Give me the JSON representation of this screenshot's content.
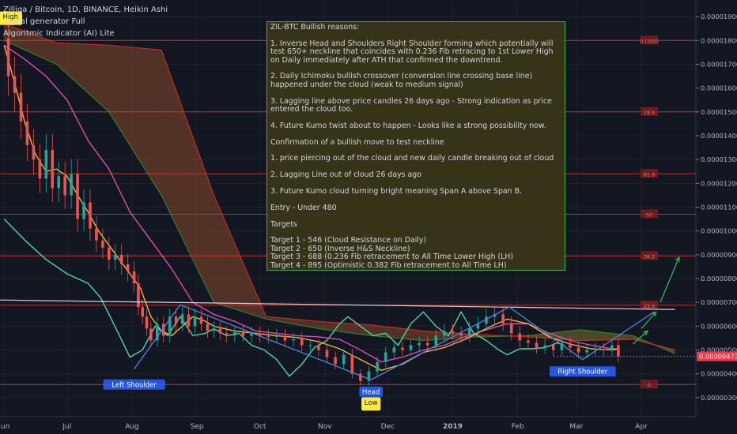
{
  "header": {
    "symbol_line": "Zilliqa / Bitcoin, 1D, BINANCE, Heikin Ashi",
    "indicator_1": "Signal generator Full",
    "indicator_2": "Algoritmic Indicator (AI) Lite"
  },
  "note": {
    "lines": [
      "ZIL-BTC Bullish reasons:",
      "",
      "1. Inverse Head and Shoulders Right Shoulder forming which potentially will test 650+ neckline that coincides with 0.236 Fib retracing to 1st Lower High on Daily immediately after ATH that confirmed the downtrend.",
      "",
      "2. Daily Ichimoku bullish crossover (conversion line crossing base line) happened under the cloud (weak to medium signal)",
      "",
      "3. Lagging line above price candles 26 days ago - Strong indication as price entered the cloud too.",
      "",
      "4. Future Kumo twist about to happen - Looks like a strong possibility now.",
      "",
      "Confirmation of a bullish move to test neckline",
      "",
      "1. price piercing out of the cloud and new daily candle breaking out of cloud",
      "",
      "2. Lagging Line out of cloud 26 days ago",
      "",
      "3. Future Kumo cloud turning bright meaning Span A above Span B.",
      "",
      "Entry - Under 480",
      "",
      "Targets",
      "",
      "Target 1 - 546 (Cloud Resistance on Daily)",
      "Target 2 - 650 (Inverse H&S Neckline)",
      "Target 3 - 688 (0.236 Fib retracement to All Time Lower High (LH)",
      "Target 4 - 895 (Optimistic 0.382 Fib retracement to All Time LH)"
    ]
  },
  "chart_data": {
    "type": "line",
    "title": "Zilliqa / Bitcoin, 1D, BINANCE, Heikin Ashi",
    "x_unit": "day index from first visible candle (x axis labeled by month)",
    "x_ticks": [
      {
        "label": "Jun",
        "x": 0
      },
      {
        "label": "Jul",
        "x": 30
      },
      {
        "label": "Aug",
        "x": 61
      },
      {
        "label": "Sep",
        "x": 92
      },
      {
        "label": "Oct",
        "x": 122
      },
      {
        "label": "Nov",
        "x": 153
      },
      {
        "label": "Dec",
        "x": 183
      },
      {
        "label": "2019",
        "x": 214
      },
      {
        "label": "Feb",
        "x": 245
      },
      {
        "label": "Mar",
        "x": 273
      },
      {
        "label": "Apr",
        "x": 304
      }
    ],
    "xlim": [
      -2,
      330
    ],
    "y_scale_factor": 1e-08,
    "y_ticks": [
      1900,
      1800,
      1700,
      1600,
      1500,
      1400,
      1300,
      1200,
      1100,
      1000,
      900,
      800,
      700,
      600,
      500,
      400,
      300
    ],
    "y_tick_labels": [
      "0.00001900",
      "0.00001800",
      "0.00001700",
      "0.00001600",
      "0.00001500",
      "0.00001400",
      "0.00001300",
      "0.00001200",
      "0.00001100",
      "0.00001000",
      "0.00000900",
      "0.00000800",
      "0.00000700",
      "0.00000600",
      "0.00000500",
      "0.00000400",
      "0.00000300"
    ],
    "ylim": [
      230,
      1970
    ],
    "last_price": {
      "value": 473,
      "label": "0.00000473"
    },
    "colors": {
      "up": "#26a69a",
      "down": "#ef5350",
      "conversion": "#f4b23e",
      "base": "#e24ab5",
      "lagging": "#4ed6a3",
      "span_a": "#2e7d32",
      "span_b": "#c62828",
      "cloud_bear": "#a0522d",
      "cloud_bull": "#8c8a2a",
      "fib": "#e53935",
      "hs_line": "#4a7fd1",
      "arrow": "#2fb55a"
    },
    "series": [
      {
        "name": "close",
        "type": "candles",
        "x": [
          0,
          2,
          5,
          8,
          11,
          14,
          17,
          20,
          23,
          26,
          29,
          32,
          35,
          38,
          41,
          44,
          47,
          50,
          53,
          56,
          59,
          62,
          64,
          66,
          68,
          70,
          73,
          76,
          79,
          82,
          85,
          88,
          91,
          94,
          97,
          100,
          103,
          106,
          110,
          114,
          118,
          122,
          126,
          130,
          134,
          138,
          142,
          146,
          150,
          154,
          158,
          162,
          166,
          170,
          174,
          178,
          182,
          186,
          190,
          194,
          198,
          202,
          206,
          210,
          214,
          218,
          222,
          226,
          230,
          234,
          238,
          242,
          246,
          250,
          254,
          258,
          262,
          266,
          270,
          274,
          278,
          282,
          286,
          290,
          293
        ],
        "values": [
          1810,
          1650,
          1580,
          1460,
          1360,
          1300,
          1220,
          1340,
          1180,
          1230,
          1150,
          1240,
          1050,
          1120,
          1010,
          960,
          930,
          880,
          900,
          860,
          830,
          780,
          680,
          640,
          590,
          540,
          610,
          560,
          640,
          610,
          650,
          600,
          640,
          610,
          580,
          590,
          570,
          560,
          575,
          560,
          570,
          560,
          555,
          560,
          540,
          545,
          520,
          520,
          500,
          470,
          440,
          480,
          400,
          370,
          410,
          450,
          490,
          510,
          500,
          520,
          530,
          520,
          560,
          580,
          570,
          560,
          590,
          610,
          640,
          650,
          610,
          570,
          540,
          530,
          510,
          520,
          500,
          530,
          510,
          490,
          500,
          505,
          500,
          520,
          473
        ]
      },
      {
        "name": "conversion",
        "x": [
          0,
          5,
          10,
          15,
          20,
          25,
          30,
          35,
          40,
          45,
          50,
          55,
          60,
          65,
          70,
          75,
          80,
          85,
          90,
          95,
          100,
          110,
          120,
          130,
          140,
          150,
          160,
          170,
          180,
          190,
          200,
          210,
          220,
          230,
          240,
          250,
          260,
          270,
          280,
          290,
          293
        ],
        "values": [
          1780,
          1620,
          1450,
          1320,
          1250,
          1260,
          1230,
          1150,
          1080,
          1000,
          940,
          880,
          820,
          760,
          640,
          580,
          560,
          600,
          640,
          625,
          600,
          580,
          570,
          560,
          552,
          535,
          505,
          460,
          415,
          440,
          490,
          510,
          545,
          590,
          630,
          610,
          555,
          525,
          505,
          500,
          505
        ]
      },
      {
        "name": "base",
        "x": [
          0,
          10,
          20,
          30,
          40,
          50,
          60,
          70,
          80,
          90,
          100,
          110,
          120,
          130,
          140,
          150,
          160,
          170,
          180,
          190,
          200,
          210,
          220,
          230,
          240,
          250,
          260,
          270,
          280,
          290,
          293
        ],
        "values": [
          1780,
          1720,
          1650,
          1550,
          1380,
          1260,
          1080,
          960,
          840,
          700,
          650,
          620,
          580,
          570,
          560,
          555,
          545,
          500,
          450,
          470,
          500,
          520,
          555,
          585,
          610,
          610,
          570,
          540,
          520,
          505,
          505
        ]
      },
      {
        "name": "lagging",
        "x": [
          0,
          10,
          20,
          30,
          40,
          46,
          50,
          55,
          60,
          66,
          72,
          78,
          84,
          90,
          96,
          100,
          106,
          112,
          118,
          124,
          130,
          136,
          142,
          148,
          154,
          160,
          164,
          170,
          176,
          182,
          188,
          194,
          200,
          206,
          212,
          218,
          224,
          230,
          236,
          240,
          246,
          252,
          258,
          264,
          267
        ],
        "values": [
          1050,
          960,
          880,
          820,
          780,
          720,
          650,
          560,
          470,
          500,
          600,
          560,
          640,
          560,
          570,
          590,
          560,
          570,
          520,
          500,
          460,
          390,
          440,
          510,
          540,
          610,
          640,
          600,
          560,
          570,
          520,
          610,
          660,
          600,
          560,
          660,
          570,
          540,
          500,
          480,
          505,
          505,
          510,
          530,
          520
        ]
      },
      {
        "name": "senkou_a",
        "x": [
          0,
          25,
          50,
          75,
          100,
          125,
          150,
          175,
          200,
          225,
          250,
          275,
          300,
          320
        ],
        "values": [
          1800,
          1700,
          1500,
          1150,
          700,
          630,
          590,
          560,
          540,
          555,
          560,
          585,
          560,
          485
        ]
      },
      {
        "name": "senkou_b",
        "x": [
          0,
          25,
          50,
          75,
          100,
          125,
          150,
          175,
          200,
          225,
          250,
          275,
          300,
          320
        ],
        "values": [
          1870,
          1790,
          1780,
          1760,
          1150,
          640,
          620,
          605,
          580,
          565,
          555,
          540,
          545,
          500
        ]
      }
    ],
    "fib_levels": [
      {
        "label": "0 (100)",
        "value": 1800
      },
      {
        "label": "78.6",
        "value": 1500
      },
      {
        "label": "61.8",
        "value": 1240
      },
      {
        "label": "50",
        "value": 1070
      },
      {
        "label": "38.2",
        "value": 895
      },
      {
        "label": "23.6",
        "value": 688
      },
      {
        "label": "0",
        "value": 355
      }
    ],
    "neckline": {
      "x": [
        -2,
        320
      ],
      "values": [
        710,
        670
      ]
    },
    "head_and_shoulders": {
      "x": [
        62,
        84,
        175,
        241,
        276,
        310
      ],
      "values": [
        420,
        690,
        375,
        680,
        460,
        660
      ]
    },
    "projection_arrows": [
      {
        "x": [
          300,
          307
        ],
        "values": [
          525,
          580
        ]
      },
      {
        "x": [
          304,
          311
        ],
        "values": [
          590,
          660
        ]
      },
      {
        "x": [
          313,
          322
        ],
        "values": [
          700,
          890
        ]
      }
    ],
    "annotations": [
      {
        "text": "High",
        "x": 3,
        "y": 1900,
        "style": "yellow"
      },
      {
        "text": "Left Shoulder",
        "x": 62,
        "y": 355,
        "style": "blue"
      },
      {
        "text": "Head",
        "x": 175,
        "y": 325,
        "style": "blue"
      },
      {
        "text": "Low",
        "x": 175,
        "y": 280,
        "style": "yellow"
      },
      {
        "text": "Right Shoulder",
        "x": 276,
        "y": 410,
        "style": "blue"
      }
    ]
  }
}
